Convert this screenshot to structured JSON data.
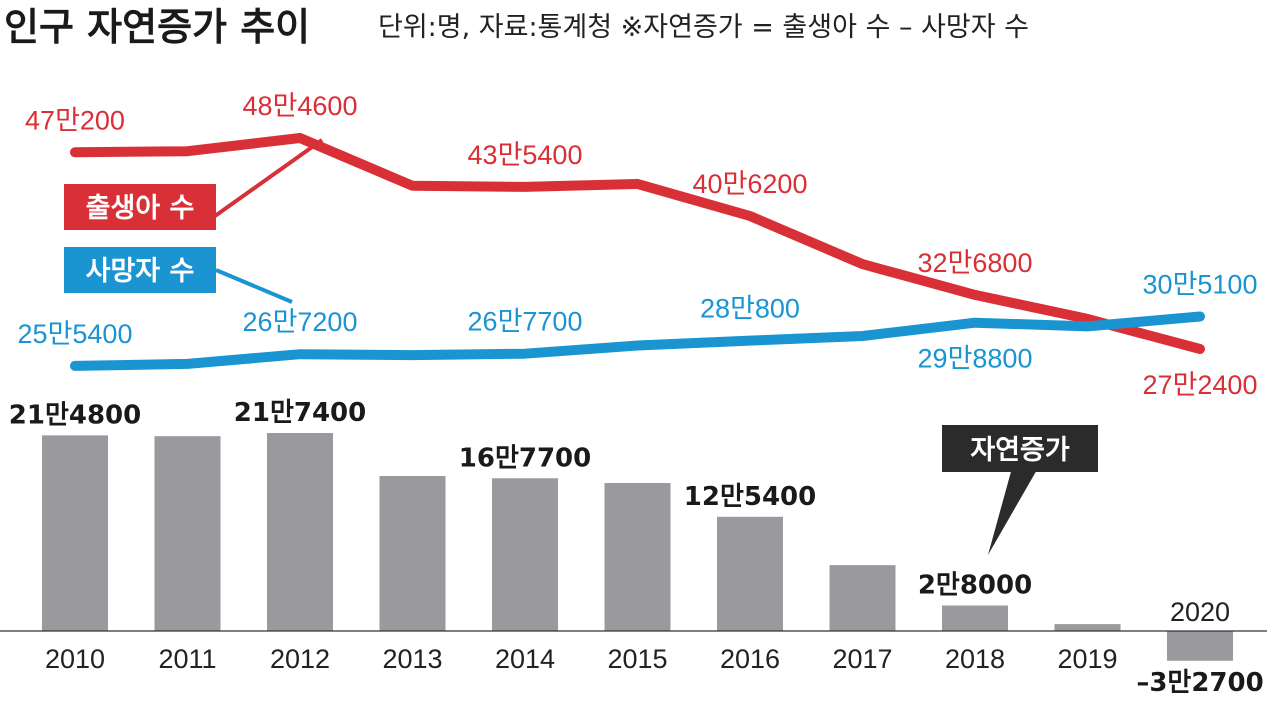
{
  "header": {
    "title": "인구 자연증가 추이",
    "subtitle": "단위:명, 자료:통계청   ※자연증가 = 출생아 수 – 사망자 수"
  },
  "colors": {
    "births": "#d93037",
    "deaths": "#1b94d2",
    "bars": "#9a9a9e",
    "callout_bg": "#2b2b2b"
  },
  "chart_data": {
    "type": "line+bar",
    "categories": [
      "2010",
      "2011",
      "2012",
      "2013",
      "2014",
      "2015",
      "2016",
      "2017",
      "2018",
      "2019",
      "2020"
    ],
    "series": [
      {
        "name": "출생아 수",
        "type": "line",
        "values": [
          470200,
          471300,
          484600,
          436500,
          435400,
          438400,
          406200,
          357800,
          326800,
          302700,
          272400
        ],
        "labels": [
          "47만200",
          "",
          "48만4600",
          "",
          "43만5400",
          "",
          "40만6200",
          "",
          "32만6800",
          "",
          "27만2400"
        ]
      },
      {
        "name": "사망자 수",
        "type": "line",
        "values": [
          255400,
          257400,
          267200,
          266300,
          267700,
          275900,
          280800,
          285500,
          298800,
          295100,
          305100
        ],
        "labels": [
          "25만5400",
          "",
          "26만7200",
          "",
          "26만7700",
          "",
          "28만800",
          "",
          "29만8800",
          "",
          "30만5100"
        ]
      },
      {
        "name": "자연증가",
        "type": "bar",
        "values": [
          214800,
          213900,
          217400,
          170200,
          167700,
          162500,
          125400,
          72300,
          28000,
          7600,
          -32700
        ],
        "labels": [
          "21만4800",
          "",
          "21만7400",
          "",
          "16만7700",
          "",
          "12만5400",
          "",
          "2만8000",
          "",
          "–3만2700"
        ]
      }
    ],
    "legend": [
      "출생아 수",
      "사망자 수",
      "자연증가"
    ],
    "grid": false
  }
}
